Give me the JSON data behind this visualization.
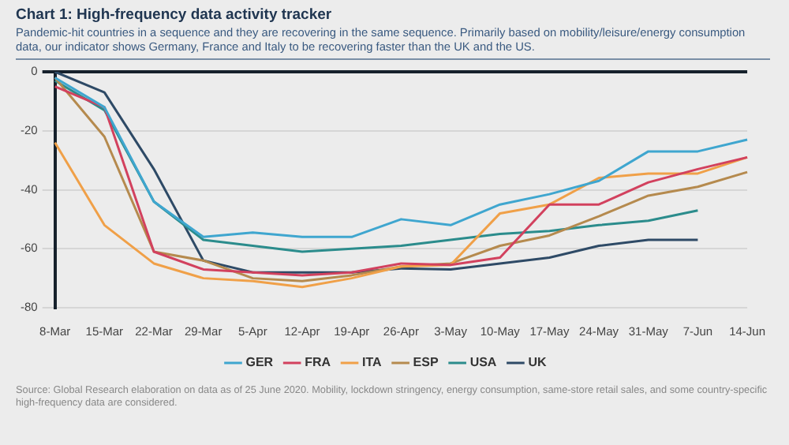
{
  "chart_data": {
    "type": "line",
    "title": "Chart 1: High-frequency data activity tracker",
    "subtitle": "Pandemic-hit countries in a sequence and they are recovering in the same sequence. Primarily based on mobility/leisure/energy consumption data, our indicator shows Germany, France and Italy to be recovering faster than the UK and the US.",
    "categories": [
      "8-Mar",
      "15-Mar",
      "22-Mar",
      "29-Mar",
      "5-Apr",
      "12-Apr",
      "19-Apr",
      "26-Apr",
      "3-May",
      "10-May",
      "17-May",
      "24-May",
      "31-May",
      "7-Jun",
      "14-Jun"
    ],
    "series": [
      {
        "name": "GER",
        "color": "#3fa6cf",
        "values": [
          -2,
          -12,
          -44,
          -56,
          -54.5,
          -56,
          -56,
          -50,
          -52,
          -45,
          -41.5,
          -37,
          -27,
          -27,
          -23
        ]
      },
      {
        "name": "FRA",
        "color": "#d2415e",
        "values": [
          -5,
          -12,
          -61,
          -67,
          -68,
          -69,
          -68,
          -65,
          -65.5,
          -63,
          -45,
          -45,
          -37.5,
          -33,
          -29
        ]
      },
      {
        "name": "ITA",
        "color": "#f0a048",
        "values": [
          -24,
          -52,
          -65,
          -70,
          -71,
          -73,
          -70,
          -66,
          -65.5,
          -48,
          -45,
          -36,
          -34.5,
          -34.5,
          -29
        ]
      },
      {
        "name": "ESP",
        "color": "#b58a4e",
        "values": [
          -2,
          -22,
          -61,
          -64,
          -70,
          -71,
          -69,
          -66,
          -65,
          -59,
          -55.5,
          -49,
          -42,
          -39,
          -34
        ]
      },
      {
        "name": "USA",
        "color": "#2b8c8c",
        "values": [
          -3,
          -13,
          -44,
          -57,
          -59,
          -61,
          -60,
          -59,
          -57,
          -55,
          -54,
          -52,
          -50.5,
          -47,
          null
        ]
      },
      {
        "name": "UK",
        "color": "#2e4a66",
        "values": [
          0,
          -7,
          -33,
          -64,
          -68,
          -68,
          -68,
          -66.7,
          -67,
          -65,
          -63,
          -59,
          -57,
          -57,
          null
        ]
      }
    ],
    "ylim": [
      -80,
      0
    ],
    "yticks": [
      0,
      -20,
      -40,
      -60,
      -80
    ],
    "grid": "y",
    "legend": "bottom",
    "marker": "none",
    "line_style": "solid",
    "annotations": [
      "Source: Global Research elaboration on data as of 25 June 2020. Mobility, lockdown stringency, energy consumption, same-store retail sales, and some country-specific high-frequency data are considered."
    ]
  }
}
